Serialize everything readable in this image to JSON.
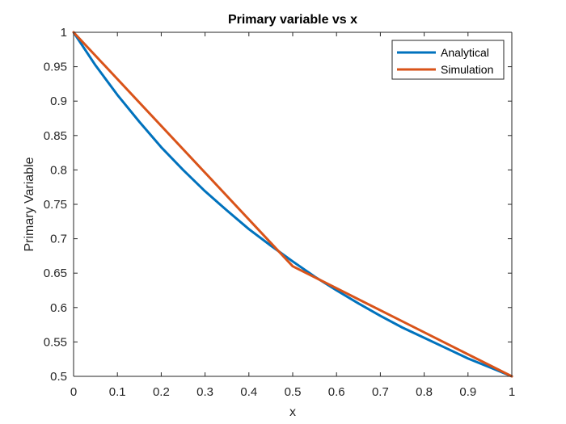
{
  "chart_data": {
    "type": "line",
    "title": "Primary variable vs x",
    "xlabel": "x",
    "ylabel": "Primary Variable",
    "xlim": [
      0,
      1
    ],
    "ylim": [
      0.5,
      1
    ],
    "x_ticks": [
      "0",
      "0.1",
      "0.2",
      "0.3",
      "0.4",
      "0.5",
      "0.6",
      "0.7",
      "0.8",
      "0.9",
      "1"
    ],
    "y_ticks": [
      "0.5",
      "0.55",
      "0.6",
      "0.65",
      "0.7",
      "0.75",
      "0.8",
      "0.85",
      "0.9",
      "0.95",
      "1"
    ],
    "grid": false,
    "legend_position": "top-right",
    "series": [
      {
        "name": "Analytical",
        "color": "#0072BD",
        "x": [
          0,
          0.05,
          0.1,
          0.15,
          0.2,
          0.25,
          0.3,
          0.35,
          0.4,
          0.45,
          0.5,
          0.55,
          0.6,
          0.65,
          0.7,
          0.75,
          0.8,
          0.85,
          0.9,
          0.95,
          1
        ],
        "y": [
          1,
          0.952,
          0.909,
          0.87,
          0.833,
          0.8,
          0.769,
          0.741,
          0.714,
          0.69,
          0.667,
          0.645,
          0.625,
          0.606,
          0.588,
          0.571,
          0.556,
          0.541,
          0.526,
          0.513,
          0.5
        ]
      },
      {
        "name": "Simulation",
        "color": "#D95319",
        "x": [
          0,
          0.5,
          1
        ],
        "y": [
          1,
          0.66,
          0.5
        ]
      }
    ]
  }
}
